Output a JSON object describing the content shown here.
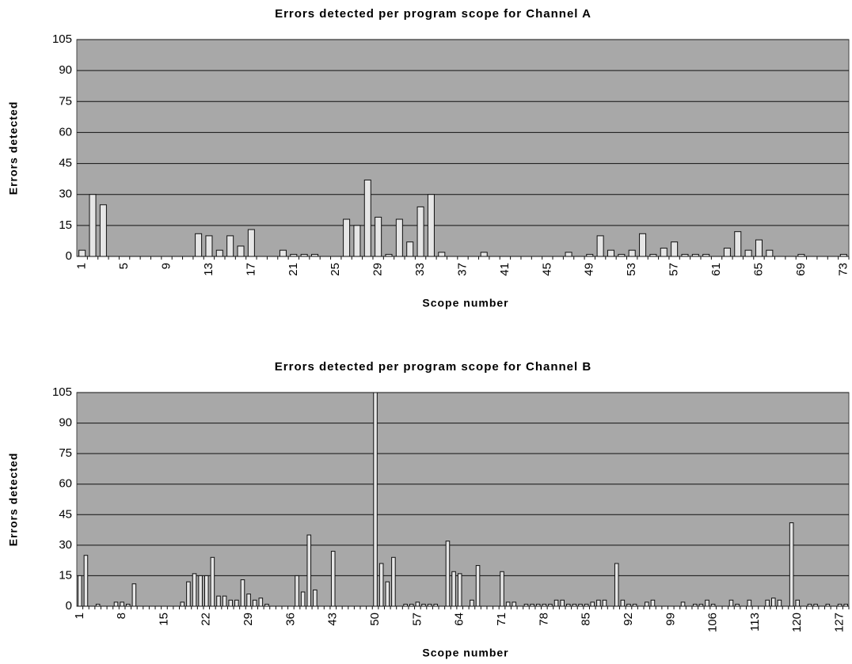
{
  "chart_data": [
    {
      "type": "bar",
      "title": "Errors detected per program scope for Channel A",
      "x_label": "Scope number",
      "y_label": "Errors detected",
      "categories": [
        "1",
        null,
        null,
        null,
        "5",
        null,
        null,
        null,
        "9",
        null,
        null,
        null,
        "13",
        null,
        null,
        null,
        "17",
        null,
        null,
        null,
        "21",
        null,
        null,
        null,
        "25",
        null,
        null,
        null,
        "29",
        null,
        null,
        null,
        "33",
        null,
        null,
        null,
        "37",
        null,
        null,
        null,
        "41",
        null,
        null,
        null,
        "45",
        null,
        null,
        null,
        "49",
        null,
        null,
        null,
        "53",
        null,
        null,
        null,
        "57",
        null,
        null,
        null,
        "61",
        null,
        null,
        null,
        "65",
        null,
        null,
        null,
        "69",
        null,
        null,
        null,
        "73"
      ],
      "values": [
        3,
        30,
        25,
        0,
        0,
        0,
        0,
        0,
        0,
        0,
        0,
        11,
        10,
        3,
        10,
        5,
        13,
        0,
        0,
        3,
        1,
        1,
        1,
        0,
        0,
        18,
        15,
        37,
        19,
        1,
        18,
        7,
        24,
        30,
        2,
        0,
        0,
        0,
        2,
        0,
        0,
        0,
        0,
        0,
        0,
        0,
        2,
        0,
        1,
        10,
        3,
        1,
        3,
        11,
        1,
        4,
        7,
        1,
        1,
        1,
        0,
        4,
        12,
        3,
        8,
        3,
        0,
        0,
        1,
        0,
        0,
        0,
        1
      ],
      "color": "#e6e6e6",
      "plot_background": "#a8a8a8",
      "ylim": [
        0,
        105
      ],
      "yticks": [
        0,
        15,
        30,
        45,
        60,
        75,
        90,
        105
      ],
      "grid": true
    },
    {
      "type": "bar",
      "title": "Errors detected per program scope for Channel B",
      "x_label": "Scope number",
      "y_label": "Errors detected",
      "categories": [
        "1",
        null,
        null,
        null,
        null,
        null,
        null,
        "8",
        null,
        null,
        null,
        null,
        null,
        null,
        "15",
        null,
        null,
        null,
        null,
        null,
        null,
        "22",
        null,
        null,
        null,
        null,
        null,
        null,
        "29",
        null,
        null,
        null,
        null,
        null,
        null,
        "36",
        null,
        null,
        null,
        null,
        null,
        null,
        "43",
        null,
        null,
        null,
        null,
        null,
        null,
        "50",
        null,
        null,
        null,
        null,
        null,
        null,
        "57",
        null,
        null,
        null,
        null,
        null,
        null,
        "64",
        null,
        null,
        null,
        null,
        null,
        null,
        "71",
        null,
        null,
        null,
        null,
        null,
        null,
        "78",
        null,
        null,
        null,
        null,
        null,
        null,
        "85",
        null,
        null,
        null,
        null,
        null,
        null,
        "92",
        null,
        null,
        null,
        null,
        null,
        null,
        "99",
        null,
        null,
        null,
        null,
        null,
        null,
        "106",
        null,
        null,
        null,
        null,
        null,
        null,
        "113",
        null,
        null,
        null,
        null,
        null,
        null,
        "120",
        null,
        null,
        null,
        null,
        null,
        null,
        "127",
        null
      ],
      "values": [
        15,
        25,
        0,
        1,
        0,
        0,
        2,
        2,
        1,
        11,
        0,
        0,
        0,
        0,
        0,
        0,
        0,
        2,
        12,
        16,
        15,
        15,
        24,
        5,
        5,
        3,
        3,
        13,
        6,
        3,
        4,
        1,
        0,
        0,
        0,
        0,
        15,
        7,
        35,
        8,
        0,
        0,
        27,
        0,
        0,
        0,
        0,
        0,
        0,
        105,
        21,
        12,
        24,
        0,
        1,
        1,
        2,
        1,
        1,
        1,
        0,
        32,
        17,
        16,
        0,
        3,
        20,
        0,
        0,
        0,
        17,
        2,
        2,
        0,
        1,
        1,
        1,
        1,
        1,
        3,
        3,
        1,
        1,
        1,
        1,
        2,
        3,
        3,
        0,
        21,
        3,
        1,
        1,
        0,
        2,
        3,
        0,
        0,
        0,
        0,
        2,
        0,
        1,
        1,
        3,
        1,
        0,
        0,
        3,
        1,
        0,
        3,
        0,
        0,
        3,
        4,
        3,
        0,
        41,
        3,
        0,
        1,
        1,
        0,
        1,
        0,
        1,
        1
      ],
      "color": "#e6e6e6",
      "plot_background": "#a8a8a8",
      "ylim": [
        0,
        105
      ],
      "yticks": [
        0,
        15,
        30,
        45,
        60,
        75,
        90,
        105
      ],
      "grid": true
    }
  ]
}
